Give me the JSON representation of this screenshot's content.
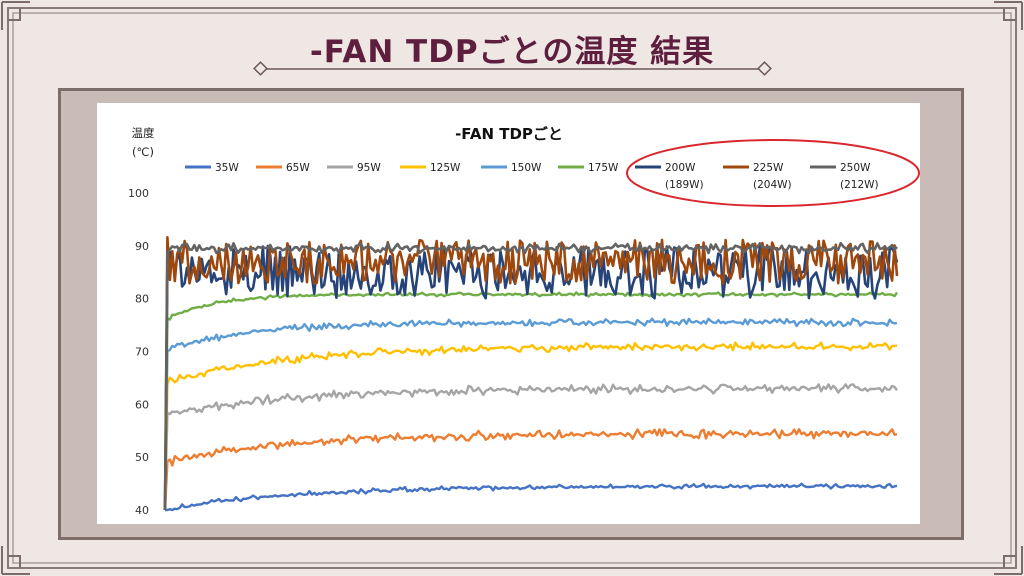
{
  "page": {
    "title": "-FAN TDPごとの温度 結果"
  },
  "chart_data": {
    "type": "line",
    "title": "-FAN TDPごと",
    "ylabel_line1": "温度",
    "ylabel_line2": "(℃)",
    "ylim": [
      40,
      100
    ],
    "yticks": [
      40,
      50,
      60,
      70,
      80,
      90,
      100
    ],
    "grid": false,
    "legend_placement": "top",
    "points_per_series": 300,
    "series": [
      {
        "name": "35W",
        "sub": "",
        "color": "#4472c4",
        "start": 40,
        "steady": 44.5,
        "noise": 0.5,
        "rise": 0.02,
        "width": 2.4
      },
      {
        "name": "65W",
        "sub": "",
        "color": "#ed7d31",
        "start": 49,
        "steady": 54.5,
        "noise": 0.9,
        "rise": 0.02,
        "width": 2.4
      },
      {
        "name": "95W",
        "sub": "",
        "color": "#a5a5a5",
        "start": 58,
        "steady": 63,
        "noise": 0.9,
        "rise": 0.02,
        "width": 2.4
      },
      {
        "name": "125W",
        "sub": "",
        "color": "#ffc000",
        "start": 64,
        "steady": 71,
        "noise": 0.8,
        "rise": 0.02,
        "width": 2.4
      },
      {
        "name": "150W",
        "sub": "",
        "color": "#5b9bd5",
        "start": 70,
        "steady": 75.5,
        "noise": 0.7,
        "rise": 0.03,
        "width": 2.4
      },
      {
        "name": "175W",
        "sub": "",
        "color": "#70ad47",
        "start": 76,
        "steady": 80.8,
        "noise": 0.4,
        "rise": 0.05,
        "width": 2.4
      },
      {
        "name": "200W",
        "sub": "(189W)",
        "color": "#264478",
        "start": 88,
        "steady": 85,
        "noise": 5.0,
        "rise": 0.5,
        "width": 2.6
      },
      {
        "name": "225W",
        "sub": "(204W)",
        "color": "#9e480e",
        "start": 89,
        "steady": 87,
        "noise": 4.2,
        "rise": 0.5,
        "width": 2.6
      },
      {
        "name": "250W",
        "sub": "(212W)",
        "color": "#636363",
        "start": 89,
        "steady": 89.5,
        "noise": 1.0,
        "rise": 0.5,
        "width": 2.6
      }
    ],
    "highlight": {
      "series": [
        "200W",
        "225W",
        "250W"
      ],
      "color": "#d9272d"
    }
  }
}
